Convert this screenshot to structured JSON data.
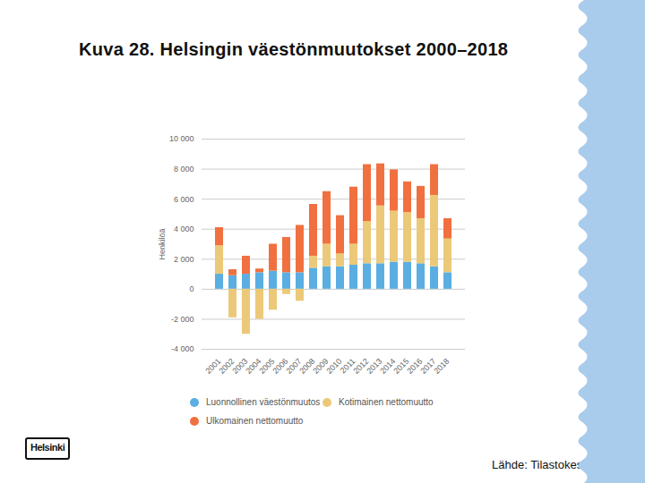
{
  "chart_data": {
    "type": "bar",
    "title": "Kuva 28. Helsingin väestönmuutokset 2000–2018",
    "source": "Lähde: Tilastokeskus",
    "logo": "Helsinki",
    "y_label": "Henkilöä",
    "stacked": true,
    "grid": true,
    "legend": "bottom",
    "categories": [
      "2001",
      "2002",
      "2003",
      "2004",
      "2005",
      "2006",
      "2007",
      "2008",
      "2009",
      "2010",
      "2011",
      "2012",
      "2013",
      "2014",
      "2015",
      "2016",
      "2017",
      "2018"
    ],
    "series": [
      {
        "name": "Luonnollinen väestönmuutos",
        "color": "#5aaee2",
        "values": [
          1000,
          900,
          1000,
          1100,
          1200,
          1100,
          1100,
          1400,
          1500,
          1500,
          1600,
          1700,
          1700,
          1800,
          1800,
          1700,
          1500,
          1100
        ]
      },
      {
        "name": "Kotimainen nettomuutto",
        "color": "#ecc978",
        "values": [
          1900,
          -1900,
          -3000,
          -2000,
          -1400,
          -350,
          -800,
          800,
          1500,
          850,
          1400,
          2800,
          3850,
          3400,
          3300,
          3000,
          4750,
          2250
        ]
      },
      {
        "name": "Ulkomainen nettomuutto",
        "color": "#f1703f",
        "values": [
          1200,
          400,
          1200,
          250,
          1800,
          2350,
          3150,
          3450,
          3500,
          2550,
          3800,
          3800,
          2800,
          2750,
          2050,
          2150,
          2050,
          1350
        ]
      }
    ],
    "ylim": [
      -4000,
      10000
    ],
    "yticks": [
      {
        "value": -4000,
        "label": "-4 000"
      },
      {
        "value": -2000,
        "label": "-2 000"
      },
      0,
      {
        "value": 2000,
        "label": "2 000"
      },
      {
        "value": 4000,
        "label": "4 000"
      },
      {
        "value": 6000,
        "label": "6 000"
      },
      {
        "value": 8000,
        "label": "8 000"
      },
      {
        "value": 10000,
        "label": "10 000"
      }
    ]
  }
}
